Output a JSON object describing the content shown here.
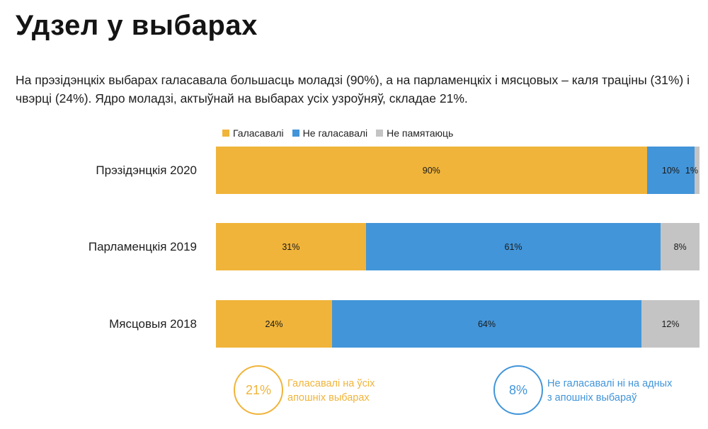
{
  "title": "Удзел у выбарах",
  "subtitle": "На прэзідэнцкіх выбарах галасавала большасць моладзі (90%), а на парламенцкіх і мясцовых – каля трацiны (31%) і чвэрці (24%). Ядро моладзі, актыўнай на выбарах усіх узроўняў, складае 21%.",
  "colors": {
    "voted": "#F0B43A",
    "not_voted": "#4295D9",
    "dont_remember": "#C4C4C4"
  },
  "chart_data": {
    "type": "bar",
    "orientation": "horizontal",
    "stacked": true,
    "percent": true,
    "categories": [
      "Прэзідэнцкія 2020",
      "Парламенцкія 2019",
      "Мясцовыя 2018"
    ],
    "series": [
      {
        "name": "Галасавалі",
        "values": [
          90,
          31,
          24
        ],
        "labels": [
          "90%",
          "31%",
          "24%"
        ]
      },
      {
        "name": "Не галасавалі",
        "values": [
          10,
          61,
          64
        ],
        "labels": [
          "10%",
          "61%",
          "64%"
        ]
      },
      {
        "name": "Не памятаюць",
        "values": [
          1,
          8,
          12
        ],
        "labels": [
          "1%",
          "8%",
          "12%"
        ]
      }
    ],
    "legend_position": "top-left",
    "grid": false
  },
  "callouts": [
    {
      "value": "21%",
      "line1": "Галасавалі на ўсіх",
      "line2": "апошніх выбарах"
    },
    {
      "value": "8%",
      "line1": "Не галасавалі ні на адных",
      "line2": "з апошніх выбараў"
    }
  ]
}
